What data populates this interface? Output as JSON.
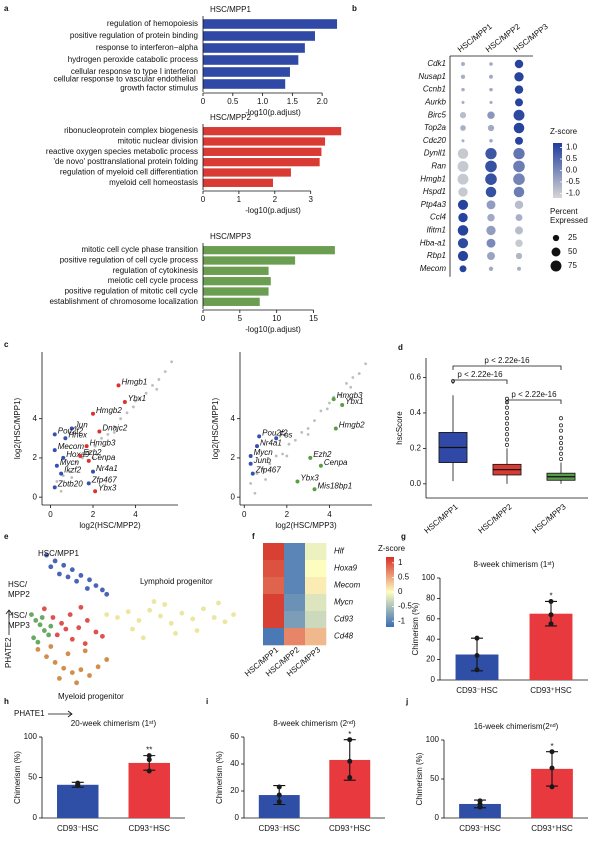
{
  "chart_data": [
    {
      "type": "hbar",
      "panel": "a",
      "title": "HSC/MPP1",
      "color": "#3049a6",
      "categories": [
        "regulation of hemopoiesis",
        "positive regulation of protein binding",
        "response to interferon−alpha",
        "hydrogen peroxide catabolic process",
        "cellular response to type I interferon",
        "cellular response to vascular endothelial growth factor stimulus"
      ],
      "values": [
        2.25,
        1.88,
        1.71,
        1.6,
        1.46,
        1.38
      ],
      "xlabel": "-log10(p.adjust)",
      "xlim": [
        0,
        2.35
      ],
      "xticks": [
        0,
        0.5,
        {
          "value": 1,
          "label": "1.0"
        },
        1.5,
        {
          "value": 2,
          "label": "2.0"
        }
      ]
    },
    {
      "type": "hbar",
      "title": "HSC/MPP2",
      "color": "#da3a34",
      "categories": [
        "ribonucleoprotein complex biogenesis",
        "mitotic nuclear division",
        "reactive oxygen species metabolic process",
        "'de novo' posttranslational protein folding",
        "regulation of myeloid cell differentiation",
        "myeloid cell homeostasis"
      ],
      "values": [
        3.85,
        3.4,
        3.3,
        3.25,
        2.45,
        1.95
      ],
      "xlabel": "-log10(p.adjust)",
      "xlim": [
        0,
        3.9
      ],
      "xticks": [
        0,
        1,
        2,
        3
      ]
    },
    {
      "type": "hbar",
      "title": "HSC/MPP3",
      "color": "#6b9e50",
      "categories": [
        "mitotic cell cycle phase transition",
        "positive regulation of cell cycle process",
        "regulation of cytokinesis",
        "meiotic cell cycle process",
        "positive regulation of mitotic cell cycle",
        "establishment of chromosome localization"
      ],
      "values": [
        17.9,
        12.5,
        8.9,
        9.2,
        8.9,
        7.7
      ],
      "xlabel": "-log10(p.adjust)",
      "xlim": [
        0,
        19
      ],
      "xticks": [
        0,
        5,
        10,
        15
      ]
    },
    {
      "type": "dot",
      "panel": "b",
      "columns": [
        "HSC/MPP1",
        "HSC/MPP2",
        "HSC/MPP3"
      ],
      "genes": [
        "Cdk1",
        "Nusap1",
        "Ccnb1",
        "Aurkb",
        "Birc5",
        "Top2a",
        "Cdc20",
        "Dynll1",
        "Ran",
        "Hmgb1",
        "Hspd1",
        "Ptp4a3",
        "Ccl4",
        "Ifitm1",
        "Hba-a1",
        "Rbp1",
        "Mecom"
      ],
      "zscores": [
        [
          -0.6,
          -0.5,
          1.1
        ],
        [
          -0.6,
          -0.5,
          1.1
        ],
        [
          -0.6,
          -0.5,
          1.1
        ],
        [
          -0.6,
          -0.5,
          1.1
        ],
        [
          -0.8,
          -0.2,
          1.0
        ],
        [
          -0.6,
          -0.5,
          1.1
        ],
        [
          -0.6,
          -0.5,
          1.1
        ],
        [
          -1.0,
          0.8,
          0.3
        ],
        [
          -1.0,
          0.9,
          0.2
        ],
        [
          -1.0,
          0.9,
          0.1
        ],
        [
          -1.0,
          0.9,
          0.2
        ],
        [
          1.1,
          -0.3,
          -0.8
        ],
        [
          1.1,
          -0.5,
          -0.6
        ],
        [
          1.1,
          -0.3,
          -0.8
        ],
        [
          1.0,
          0.0,
          -1.0
        ],
        [
          1.1,
          -0.4,
          -0.7
        ],
        [
          1.1,
          -0.5,
          -0.6
        ]
      ],
      "percent": [
        [
          10,
          8,
          45
        ],
        [
          12,
          10,
          55
        ],
        [
          8,
          8,
          45
        ],
        [
          6,
          6,
          40
        ],
        [
          25,
          35,
          75
        ],
        [
          20,
          25,
          70
        ],
        [
          6,
          8,
          40
        ],
        [
          70,
          80,
          80
        ],
        [
          75,
          85,
          85
        ],
        [
          75,
          85,
          85
        ],
        [
          55,
          70,
          70
        ],
        [
          65,
          50,
          45
        ],
        [
          55,
          35,
          30
        ],
        [
          70,
          55,
          40
        ],
        [
          65,
          50,
          35
        ],
        [
          65,
          40,
          25
        ],
        [
          30,
          12,
          10
        ]
      ],
      "zlim": [
        -1.2,
        1.2
      ],
      "colors": [
        "#d6d6d6",
        "#1f3d9b"
      ],
      "colorbar_title": "Z-score",
      "colorbar_ticks": [
        {
          "value": 1,
          "label": "1.0"
        },
        0.5,
        {
          "value": 0,
          "label": "0.0"
        },
        -0.5,
        {
          "value": -1,
          "label": "-1.0"
        }
      ],
      "size_title": "Percent Expressed",
      "size_ticks": [
        25,
        50,
        75
      ]
    },
    {
      "type": "scatter",
      "panel": "c",
      "xlabel": "log2(HSC/MPP2)",
      "ylabel": "log2(HSC/MPP1)",
      "xlim": [
        -0.4,
        6
      ],
      "ylim": [
        -0.4,
        7.4
      ],
      "xticks": [
        0,
        2,
        4
      ],
      "yticks": [
        0,
        2,
        4
      ],
      "series": [
        {
          "color": "#bdbdbd",
          "x": [
            0.3,
            0.6,
            0.9,
            1.2,
            1.5,
            1.8,
            2.1,
            2.4,
            2.7,
            3.0,
            3.3,
            3.6,
            3.9,
            4.2,
            4.5,
            4.8,
            5.1,
            5.4,
            5.7,
            1.0,
            2.0,
            3.0,
            4.0,
            5.0,
            0.5
          ],
          "y": [
            0.8,
            1.1,
            1.3,
            1.8,
            2.0,
            2.3,
            2.6,
            3.0,
            3.2,
            3.6,
            4.0,
            4.3,
            4.6,
            5.0,
            5.3,
            5.7,
            6.0,
            6.4,
            6.9,
            1.0,
            2.0,
            3.3,
            4.9,
            5.5,
            0.3
          ]
        },
        {
          "color": "#3450b0",
          "x": [
            1.0,
            0.2,
            0.7,
            0.2,
            0.6,
            0.3,
            0.5,
            0.2,
            2.0,
            1.8
          ],
          "y": [
            3.5,
            3.2,
            3.0,
            2.4,
            2.0,
            1.6,
            1.2,
            0.5,
            1.3,
            0.7
          ],
          "labels": [
            "Jun",
            "Pou2f2",
            "Hhex",
            "Mecom",
            "Hoxa9",
            "Mycn",
            "Ikzf2",
            "Zbtb20",
            "Nr4a1",
            "Zfp467"
          ]
        },
        {
          "color": "#d8332f",
          "x": [
            3.2,
            3.5,
            2.0,
            2.3,
            1.7,
            1.4,
            1.8,
            2.1
          ],
          "y": [
            5.7,
            4.85,
            4.25,
            3.35,
            2.6,
            2.1,
            1.85,
            0.3
          ],
          "labels": [
            "Hmgb1",
            "Ybx1",
            "Hmgb2",
            "Dnajc2",
            "Hmgb3",
            "Ezh2",
            "Cenpa",
            "Ybx3"
          ]
        }
      ]
    },
    {
      "type": "scatter",
      "xlabel": "log2(HSC/MPP3)",
      "ylabel": "log2(HSC/MPP1)",
      "xlim": [
        -0.2,
        6
      ],
      "ylim": [
        -0.4,
        7.4
      ],
      "xticks": [
        0,
        2,
        4
      ],
      "yticks": [
        0,
        2,
        4
      ],
      "series": [
        {
          "color": "#bdbdbd",
          "x": [
            0.3,
            0.6,
            0.9,
            1.2,
            1.5,
            1.8,
            2.1,
            2.4,
            2.7,
            3.0,
            3.3,
            3.6,
            3.9,
            4.2,
            4.5,
            4.8,
            5.1,
            5.4,
            5.7,
            1.0,
            2.0,
            3.0,
            4.0,
            5.0,
            0.5
          ],
          "y": [
            0.7,
            1.2,
            1.4,
            1.7,
            2.1,
            2.2,
            2.7,
            2.9,
            3.3,
            3.5,
            3.9,
            4.4,
            4.5,
            5.1,
            5.2,
            5.8,
            6.1,
            6.3,
            6.8,
            0.9,
            2.1,
            3.2,
            4.8,
            5.6,
            0.2
          ]
        },
        {
          "color": "#3450b0",
          "x": [
            0.7,
            1.5,
            0.6,
            0.3,
            0.3,
            0.4
          ],
          "y": [
            3.1,
            3.0,
            2.6,
            2.1,
            1.7,
            1.2
          ],
          "labels": [
            "Pou2f2",
            "Fos",
            "Nr4a1",
            "Mycn",
            "Junb",
            "Zfp467"
          ]
        },
        {
          "color": "#5a9e45",
          "x": [
            4.2,
            4.6,
            4.3,
            3.1,
            3.6,
            2.5,
            3.3
          ],
          "y": [
            5.0,
            4.7,
            3.5,
            2.0,
            1.6,
            0.8,
            0.4
          ],
          "labels": [
            "Hmgb3",
            "Ybx1",
            "Hmgb2",
            "Ezh2",
            "Cenpa",
            "Ybx3",
            "Mis18bp1"
          ]
        }
      ]
    },
    {
      "type": "box",
      "panel": "d",
      "ylabel": "hscScore",
      "categories": [
        "HSC/MPP1",
        "HSC/MPP2",
        "HSC/MPP3"
      ],
      "colors": [
        "#3049a6",
        "#da3a34",
        "#5a9a4c"
      ],
      "ylim": [
        -0.08,
        0.71
      ],
      "yticks": [
        {
          "value": 0,
          "label": "0.0"
        },
        0.2,
        0.4,
        0.6
      ],
      "stats": [
        {
          "min": 0.015,
          "q1": 0.12,
          "median": 0.205,
          "q3": 0.29,
          "max": 0.5,
          "outliers": [
            0.58
          ]
        },
        {
          "min": 0.0,
          "q1": 0.05,
          "median": 0.08,
          "q3": 0.11,
          "max": 0.2,
          "outliers": [
            0.22,
            0.25,
            0.28,
            0.31,
            0.34,
            0.37,
            0.4,
            0.43,
            0.46,
            0.48
          ]
        },
        {
          "min": 0.0,
          "q1": 0.02,
          "median": 0.04,
          "q3": 0.06,
          "max": 0.12,
          "outliers": [
            0.14,
            0.17,
            0.2,
            0.23,
            0.26,
            0.3,
            0.33,
            0.37
          ]
        }
      ],
      "comparisons": [
        {
          "label": "p < 2.22e-16",
          "from": "HSC/MPP1",
          "to": "HSC/MPP3"
        },
        {
          "label": "p < 2.22e-16",
          "from": "HSC/MPP1",
          "to": "HSC/MPP2"
        },
        {
          "label": "p < 2.22e-16",
          "from": "HSC/MPP2",
          "to": "HSC/MPP3"
        }
      ]
    },
    {
      "type": "scatter",
      "panel": "e",
      "xlabel": "PHATE1",
      "ylabel": "PHATE2",
      "xlim": [
        0,
        10
      ],
      "ylim": [
        0,
        10
      ],
      "series": [
        {
          "name": "Lymphoid progenitor",
          "color": "#e9e28d",
          "x": [
            3.8,
            4.3,
            4.8,
            5.3,
            5.8,
            6.3,
            6.8,
            7.3,
            7.8,
            8.3,
            8.8,
            9.3,
            9.7,
            5.0,
            6.0,
            7.0,
            8.0,
            9.0,
            5.5,
            6.5
          ],
          "y": [
            5.2,
            5.0,
            5.4,
            4.8,
            5.5,
            5.1,
            4.6,
            5.3,
            4.9,
            5.6,
            5.0,
            4.7,
            5.2,
            4.2,
            6.1,
            3.9,
            4.1,
            6.0,
            3.6,
            5.9
          ]
        },
        {
          "name": "Myeloid progenitor",
          "color": "#c97a2d",
          "x": [
            0.6,
            1.0,
            1.4,
            1.8,
            2.2,
            2.6,
            3.0,
            3.4,
            3.8,
            1.2,
            2.0,
            2.8,
            1.6,
            2.4
          ],
          "y": [
            2.8,
            2.3,
            1.9,
            1.5,
            1.2,
            1.4,
            1.0,
            1.6,
            2.1,
            3.0,
            2.5,
            2.7,
            0.8,
            0.5
          ]
        },
        {
          "name": "HSC/MPP2",
          "color": "#d8332f",
          "x": [
            0.9,
            1.3,
            1.7,
            2.1,
            2.5,
            2.9,
            3.3,
            1.5,
            2.2,
            2.8,
            3.6,
            1.9,
            2.6
          ],
          "y": [
            5.6,
            5.0,
            4.6,
            5.2,
            4.3,
            4.8,
            4.0,
            3.8,
            3.5,
            3.2,
            3.7,
            4.2,
            5.7
          ]
        },
        {
          "name": "HSC/MPP3",
          "color": "#4e9a48",
          "x": [
            0.3,
            0.5,
            0.7,
            0.9,
            1.1,
            0.4,
            0.8,
            1.2,
            0.6
          ],
          "y": [
            5.2,
            4.8,
            4.5,
            4.1,
            3.8,
            3.6,
            5.0,
            4.4,
            3.3
          ]
        },
        {
          "name": "HSC/MPP1",
          "color": "#2b4aa8",
          "x": [
            1.0,
            1.4,
            1.8,
            2.2,
            2.6,
            3.0,
            3.3,
            3.6,
            1.6,
            2.4,
            2.9,
            2.0,
            3.8,
            1.2
          ],
          "y": [
            9.3,
            8.9,
            8.6,
            8.3,
            7.9,
            7.6,
            7.2,
            6.9,
            8.0,
            7.5,
            7.0,
            7.8,
            6.6,
            8.5
          ]
        }
      ]
    },
    {
      "type": "heatmap",
      "panel": "f",
      "columns": [
        "HSC/MPP1",
        "HSC/MPP2",
        "HSC/MPP3"
      ],
      "rows": [
        "Hlf",
        "Hoxa9",
        "Mecom",
        "Mycn",
        "Cd93",
        "Cd48"
      ],
      "values": [
        [
          1.1,
          -1.0,
          -0.1
        ],
        [
          1.0,
          -1.0,
          0.0
        ],
        [
          0.9,
          -1.0,
          0.1
        ],
        [
          1.1,
          -0.9,
          -0.2
        ],
        [
          1.1,
          -0.8,
          -0.3
        ],
        [
          -1.1,
          0.7,
          0.4
        ]
      ],
      "zlim": [
        -1.2,
        1.2
      ],
      "colors": [
        "#3a6db4",
        "#fdfdc0",
        "#d62f27"
      ],
      "colorbar_title": "Z-score",
      "colorbar_ticks": [
        1,
        0.5,
        0,
        -0.5,
        -1
      ]
    },
    {
      "type": "bar",
      "panel": "g",
      "title": "8-week chimerism (1ˢᵗ)",
      "ylabel": "Chimerism (%)",
      "categories": [
        "CD93⁻HSC",
        "CD93⁺HSC"
      ],
      "colors": [
        "#2f4fa6",
        "#e8393e"
      ],
      "values": [
        25,
        65
      ],
      "errors": [
        16,
        12
      ],
      "points": [
        [
          10,
          24,
          41
        ],
        [
          55,
          64,
          77
        ]
      ],
      "significance": "*",
      "ylim": [
        0,
        100
      ],
      "yticks": [
        0,
        20,
        40,
        60,
        80,
        100
      ]
    },
    {
      "type": "bar",
      "panel": "h",
      "title": "20-week chimerism (1ˢᵗ)",
      "ylabel": "Chimerism (%)",
      "categories": [
        "CD93⁻HSC",
        "CD93⁺HSC"
      ],
      "colors": [
        "#2f4fa6",
        "#e8393e"
      ],
      "values": [
        41,
        68
      ],
      "errors": [
        3,
        9
      ],
      "points": [
        [
          40,
          41,
          43
        ],
        [
          58,
          72,
          77
        ]
      ],
      "significance": "**",
      "ylim": [
        0,
        100
      ],
      "yticks": [
        0,
        50,
        100
      ]
    },
    {
      "type": "bar",
      "panel": "i",
      "title": "8-week  chimerism (2ⁿᵈ)",
      "ylabel": "Chimerism (%)",
      "categories": [
        "CD93⁻HSC",
        "CD93⁺HSC"
      ],
      "colors": [
        "#2f4fa6",
        "#e8393e"
      ],
      "values": [
        17,
        43
      ],
      "errors": [
        7,
        15
      ],
      "points": [
        [
          12,
          17,
          23
        ],
        [
          30,
          42,
          58
        ]
      ],
      "significance": "*",
      "ylim": [
        0,
        60
      ],
      "yticks": [
        0,
        20,
        40,
        60
      ]
    },
    {
      "type": "bar",
      "panel": "j",
      "title": "16-week  chimerism(2ⁿᵈ)",
      "ylabel": "Chimerism (%)",
      "categories": [
        "CD93⁻HSC",
        "CD93⁺HSC"
      ],
      "colors": [
        "#2f4fa6",
        "#e8393e"
      ],
      "values": [
        18,
        63
      ],
      "errors": [
        5,
        22
      ],
      "points": [
        [
          14,
          18,
          22
        ],
        [
          40,
          64,
          85
        ]
      ],
      "significance": "*",
      "ylim": [
        0,
        100
      ],
      "yticks": [
        0,
        50,
        100
      ]
    }
  ]
}
